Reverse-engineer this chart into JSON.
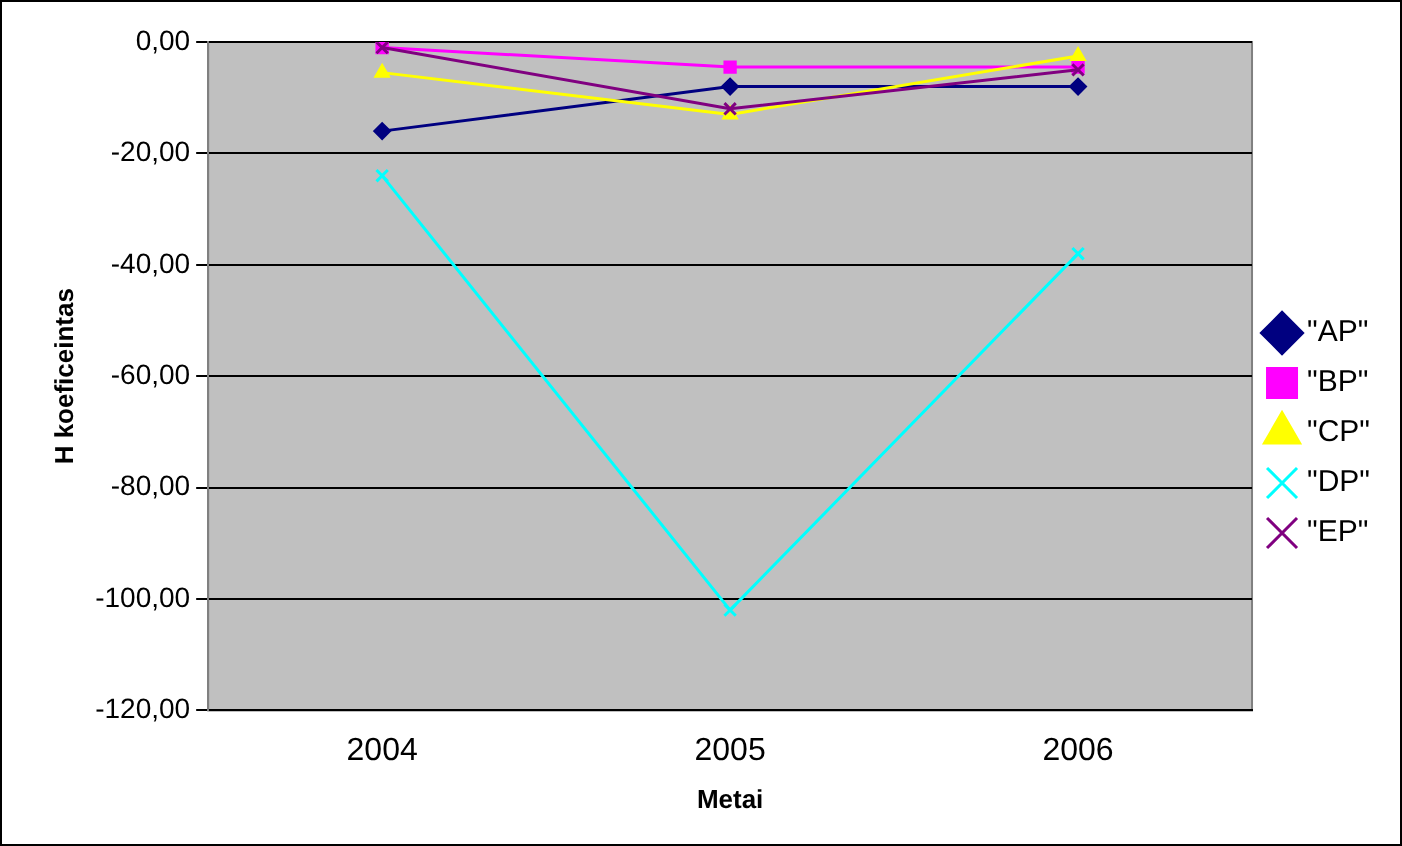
{
  "chart_data": {
    "type": "line",
    "xlabel": "Metai",
    "ylabel": "H koeficeintas",
    "categories": [
      "2004",
      "2005",
      "2006"
    ],
    "series": [
      {
        "name": "\"AP\"",
        "color": "#000080",
        "marker": "diamond",
        "values": [
          -16,
          -8,
          -8
        ]
      },
      {
        "name": "\"BP\"",
        "color": "#ff00ff",
        "marker": "square",
        "values": [
          -1,
          -4.5,
          -4.5
        ]
      },
      {
        "name": "\"CP\"",
        "color": "#ffff00",
        "marker": "triangle",
        "values": [
          -5.5,
          -13,
          -2.5
        ]
      },
      {
        "name": "\"DP\"",
        "color": "#00ffff",
        "marker": "cross",
        "values": [
          -24,
          -102,
          -38
        ]
      },
      {
        "name": "\"EP\"",
        "color": "#800080",
        "marker": "cross",
        "values": [
          -1,
          -12,
          -5
        ]
      }
    ],
    "ylim": [
      -120,
      0
    ],
    "yticks": [
      {
        "value": -120,
        "label": "-120,00"
      },
      {
        "value": -100,
        "label": "-100,00"
      },
      {
        "value": -80,
        "label": "-80,00"
      },
      {
        "value": -60,
        "label": "-60,00"
      },
      {
        "value": -40,
        "label": "-40,00"
      },
      {
        "value": -20,
        "label": "-20,00"
      },
      {
        "value": 0,
        "label": "0,00"
      }
    ],
    "grid": "y",
    "legend": "right",
    "line_style": "solid"
  }
}
